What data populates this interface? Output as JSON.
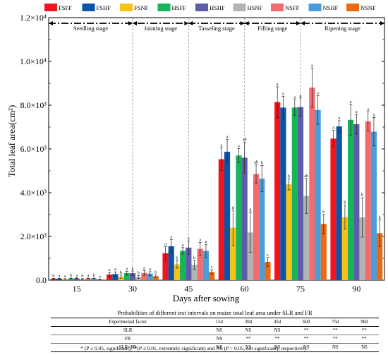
{
  "chart_data": {
    "type": "bar",
    "xlabel": "Days after sowing",
    "ylabel": "Total leaf area(cm²)",
    "y_exponent": 4,
    "ylim": [
      0,
      12000
    ],
    "y_tick_labels": [
      "0.0",
      "2.0×10³",
      "4.0×10³",
      "6.0×10³",
      "8.0×10³",
      "1.0×10⁴",
      "1.2×10⁴"
    ],
    "y_tick_values": [
      0,
      2000,
      4000,
      6000,
      8000,
      10000,
      12000
    ],
    "categories": [
      "15",
      "30",
      "45",
      "60",
      "75",
      "90"
    ],
    "stages": [
      "Seedling stage",
      "Jointing stage",
      "Tasseling stage",
      "Filling stage",
      "Ripening stage"
    ],
    "legend_placement": "top",
    "series": [
      {
        "name": "FSFF",
        "color": "#f0141e",
        "values": [
          70,
          260,
          1230,
          5530,
          8140,
          6470
        ],
        "errors": [
          15,
          90,
          300,
          520,
          700,
          380
        ],
        "letters": [
          "b",
          "a",
          "a",
          "a",
          "a",
          "a"
        ]
      },
      {
        "name": "FSHF",
        "color": "#0a55a8",
        "values": [
          70,
          280,
          1550,
          5870,
          7890,
          7030
        ],
        "errors": [
          15,
          100,
          300,
          560,
          520,
          260
        ],
        "letters": [
          "a",
          "a",
          "a",
          "a",
          "a",
          "a"
        ]
      },
      {
        "name": "FSNF",
        "color": "#f7c31a",
        "values": [
          50,
          160,
          720,
          2400,
          4380,
          2880
        ],
        "errors": [
          15,
          70,
          170,
          800,
          250,
          550
        ],
        "letters": [
          "a",
          "b",
          "b",
          "d",
          "b",
          "b"
        ]
      },
      {
        "name": "HSFF",
        "color": "#18b45a",
        "values": [
          80,
          320,
          1340,
          5700,
          7890,
          7330
        ],
        "errors": [
          15,
          90,
          150,
          320,
          350,
          700
        ],
        "letters": [
          "b",
          "a",
          "a",
          "a",
          "a",
          "a"
        ]
      },
      {
        "name": "HSHF",
        "color": "#5b5ea6",
        "values": [
          80,
          320,
          1490,
          5600,
          7910,
          7130
        ],
        "errors": [
          15,
          100,
          300,
          700,
          420,
          450
        ],
        "letters": [
          "a",
          "a",
          "a",
          "ab",
          "a",
          "a"
        ]
      },
      {
        "name": "HSNF",
        "color": "#b3b3b3",
        "values": [
          50,
          140,
          700,
          2180,
          3850,
          2870
        ],
        "errors": [
          15,
          70,
          200,
          900,
          800,
          900
        ],
        "letters": [
          "b",
          "b",
          "b",
          "d",
          "ab",
          "b"
        ]
      },
      {
        "name": "NSFF",
        "color": "#f26b6f",
        "values": [
          80,
          330,
          1430,
          4850,
          8800,
          7260
        ],
        "errors": [
          15,
          110,
          300,
          420,
          900,
          430
        ],
        "letters": [
          "a",
          "a",
          "a",
          "ab",
          "a",
          "a"
        ]
      },
      {
        "name": "NSHF",
        "color": "#4a9ed8",
        "values": [
          80,
          300,
          1340,
          4640,
          7780,
          6790
        ],
        "errors": [
          15,
          90,
          300,
          600,
          650,
          650
        ],
        "letters": [
          "b",
          "a",
          "a",
          "b",
          "a",
          "a"
        ]
      },
      {
        "name": "NSNF",
        "color": "#ea6a12",
        "values": [
          40,
          180,
          380,
          840,
          2570,
          2150
        ],
        "errors": [
          10,
          60,
          100,
          200,
          430,
          600
        ],
        "letters": [
          "a",
          "b",
          "c",
          "c",
          "b",
          "b"
        ]
      }
    ]
  },
  "table": {
    "title": "Probabilities of  different test intervals on maize total leaf area under SLR and FR",
    "headers": [
      "Experimental factor",
      "15d",
      "30d",
      "45d",
      "60d",
      "75d",
      "90d"
    ],
    "rows": [
      [
        "SLR",
        "NS",
        "NS",
        "NS",
        "**",
        "**",
        "**"
      ],
      [
        "FR",
        "NS",
        "**",
        "**",
        "**",
        "**",
        "**"
      ],
      [
        "SLR×FR",
        "NS",
        "NS",
        "NS",
        "NS",
        "NS",
        "NS"
      ]
    ]
  },
  "footnote": "* (P ≤ 0.05, significant),**(P ≤ 0.01, extremely significant) and NS (P > 0.05, not significant), respectively."
}
